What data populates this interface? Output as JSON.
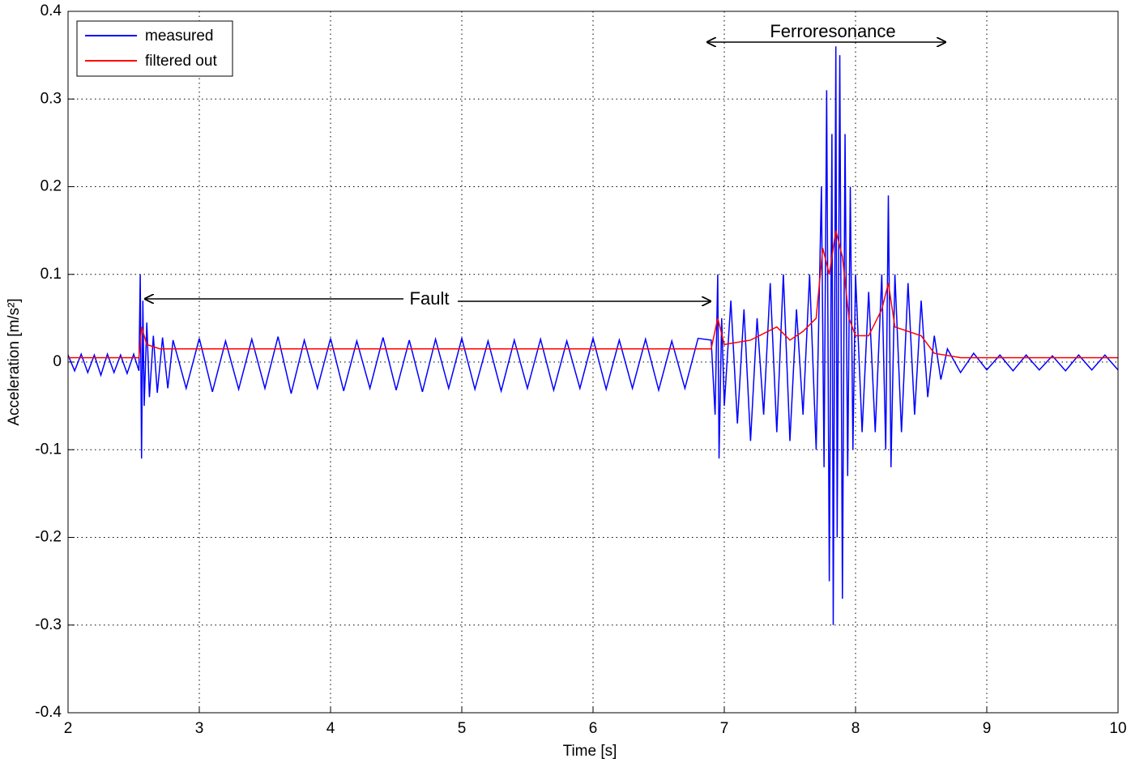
{
  "chart_data": {
    "type": "line",
    "xlabel": "Time [s]",
    "ylabel": "Acceleration [m/s²]",
    "xlim": [
      2,
      10
    ],
    "xticks": [
      2,
      3,
      4,
      5,
      6,
      7,
      8,
      9,
      10
    ],
    "ylim": [
      -0.4,
      0.4
    ],
    "yticks": [
      -0.4,
      -0.3,
      -0.2,
      -0.1,
      0,
      0.1,
      0.2,
      0.3,
      0.4
    ],
    "grid": true,
    "legend": "upper left",
    "annotations": [
      "Fault",
      "Ferroresonance"
    ],
    "series": [
      {
        "name": "measured",
        "color": "#0000ff",
        "x": [
          2.0,
          2.05,
          2.1,
          2.15,
          2.2,
          2.25,
          2.3,
          2.35,
          2.4,
          2.45,
          2.5,
          2.54,
          2.55,
          2.56,
          2.57,
          2.58,
          2.6,
          2.62,
          2.65,
          2.68,
          2.72,
          2.76,
          2.8,
          2.9,
          3.0,
          3.1,
          3.2,
          3.3,
          3.4,
          3.5,
          3.6,
          3.7,
          3.8,
          3.9,
          4.0,
          4.1,
          4.2,
          4.3,
          4.4,
          4.5,
          4.6,
          4.7,
          4.8,
          4.9,
          5.0,
          5.1,
          5.2,
          5.3,
          5.4,
          5.5,
          5.6,
          5.7,
          5.8,
          5.9,
          6.0,
          6.1,
          6.2,
          6.3,
          6.4,
          6.5,
          6.6,
          6.7,
          6.8,
          6.9,
          6.93,
          6.95,
          6.96,
          6.98,
          7.0,
          7.05,
          7.1,
          7.15,
          7.2,
          7.25,
          7.3,
          7.35,
          7.4,
          7.45,
          7.5,
          7.55,
          7.6,
          7.65,
          7.7,
          7.74,
          7.76,
          7.78,
          7.8,
          7.82,
          7.83,
          7.85,
          7.86,
          7.88,
          7.9,
          7.92,
          7.94,
          7.96,
          7.98,
          8.0,
          8.05,
          8.1,
          8.15,
          8.2,
          8.23,
          8.25,
          8.27,
          8.3,
          8.35,
          8.4,
          8.45,
          8.5,
          8.55,
          8.6,
          8.65,
          8.7,
          8.8,
          8.9,
          9.0,
          9.1,
          9.2,
          9.3,
          9.4,
          9.5,
          9.6,
          9.7,
          9.8,
          9.9,
          10.0
        ],
        "values": [
          0.008,
          -0.01,
          0.009,
          -0.012,
          0.008,
          -0.015,
          0.009,
          -0.012,
          0.008,
          -0.013,
          0.009,
          -0.01,
          0.1,
          -0.11,
          0.07,
          -0.05,
          0.045,
          -0.04,
          0.03,
          -0.035,
          0.028,
          -0.03,
          0.025,
          -0.03,
          0.027,
          -0.034,
          0.024,
          -0.031,
          0.026,
          -0.03,
          0.029,
          -0.036,
          0.025,
          -0.03,
          0.027,
          -0.033,
          0.024,
          -0.03,
          0.028,
          -0.032,
          0.025,
          -0.034,
          0.026,
          -0.03,
          0.027,
          -0.031,
          0.024,
          -0.033,
          0.025,
          -0.03,
          0.026,
          -0.032,
          0.024,
          -0.03,
          0.027,
          -0.031,
          0.025,
          -0.03,
          0.026,
          -0.032,
          0.024,
          -0.03,
          0.027,
          0.025,
          -0.06,
          0.1,
          -0.11,
          0.05,
          -0.05,
          0.07,
          -0.07,
          0.06,
          -0.09,
          0.05,
          -0.06,
          0.09,
          -0.08,
          0.1,
          -0.09,
          0.06,
          -0.06,
          0.1,
          -0.1,
          0.2,
          -0.12,
          0.31,
          -0.25,
          0.26,
          -0.3,
          0.36,
          -0.2,
          0.35,
          -0.27,
          0.26,
          -0.13,
          0.2,
          -0.1,
          0.1,
          -0.08,
          0.08,
          -0.08,
          0.1,
          -0.1,
          0.19,
          -0.12,
          0.1,
          -0.08,
          0.09,
          -0.06,
          0.07,
          -0.04,
          0.03,
          -0.02,
          0.015,
          -0.012,
          0.01,
          -0.009,
          0.008,
          -0.01,
          0.008,
          -0.009,
          0.007,
          -0.01,
          0.008,
          -0.009,
          0.008,
          -0.009
        ]
      },
      {
        "name": "filtered out",
        "color": "#ff0000",
        "x": [
          2.0,
          2.54,
          2.56,
          2.6,
          2.7,
          6.9,
          6.95,
          7.0,
          7.2,
          7.4,
          7.5,
          7.6,
          7.7,
          7.75,
          7.8,
          7.85,
          7.9,
          7.95,
          8.0,
          8.1,
          8.2,
          8.25,
          8.3,
          8.5,
          8.6,
          8.8,
          10.0
        ],
        "values": [
          0.005,
          0.005,
          0.04,
          0.02,
          0.015,
          0.015,
          0.05,
          0.02,
          0.025,
          0.04,
          0.025,
          0.035,
          0.05,
          0.13,
          0.1,
          0.15,
          0.12,
          0.05,
          0.03,
          0.03,
          0.06,
          0.09,
          0.04,
          0.03,
          0.01,
          0.005,
          0.005
        ]
      }
    ]
  }
}
